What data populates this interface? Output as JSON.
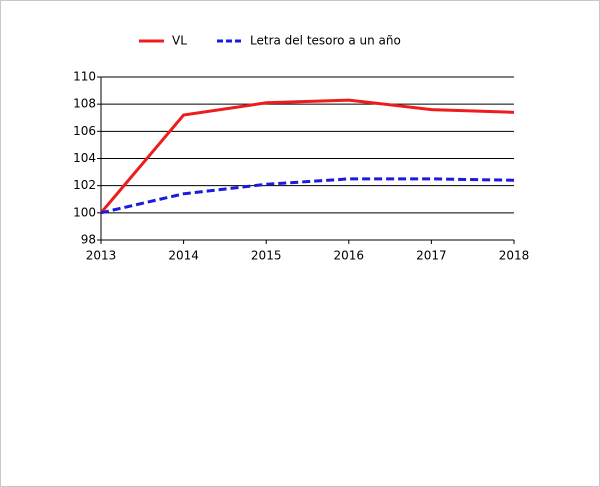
{
  "chart_data": {
    "type": "line",
    "x": [
      2013,
      2014,
      2015,
      2016,
      2017,
      2018
    ],
    "series": [
      {
        "name": "VL",
        "color": "#ee1c1c",
        "dash": false,
        "values": [
          100,
          107.2,
          108.1,
          108.3,
          107.6,
          107.4
        ]
      },
      {
        "name": "Letra del tesoro a un año",
        "color": "#1a1ae0",
        "dash": true,
        "values": [
          100,
          101.4,
          102.1,
          102.5,
          102.5,
          102.4
        ]
      }
    ],
    "xlim": [
      2013,
      2018
    ],
    "xticks": [
      2013,
      2014,
      2015,
      2016,
      2017,
      2018
    ],
    "ylim": [
      98,
      110
    ],
    "yticks": [
      98,
      100,
      102,
      104,
      106,
      108,
      110
    ],
    "grid": true,
    "legend": "top"
  }
}
